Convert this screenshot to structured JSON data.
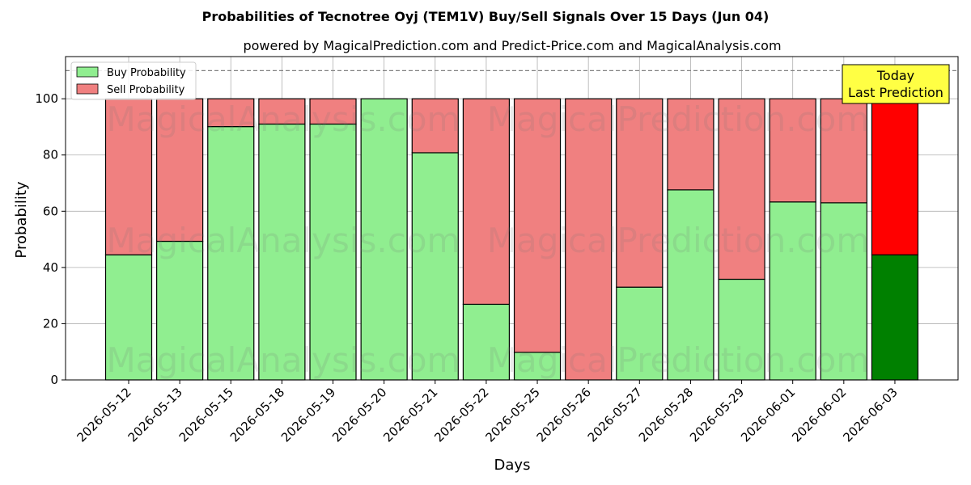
{
  "chart_data": {
    "type": "bar",
    "stacked": true,
    "title": "Probabilities of Tecnotree Oyj (TEM1V) Buy/Sell Signals Over 15 Days (Jun 04)",
    "subtitle": "powered by MagicalPrediction.com and Predict-Price.com and MagicalAnalysis.com",
    "xlabel": "Days",
    "ylabel": "Probability",
    "ylim": [
      0,
      115
    ],
    "yticks": [
      0,
      20,
      40,
      60,
      80,
      100
    ],
    "grid": true,
    "legend_position": "top-left",
    "reference_line": 110,
    "categories": [
      "2026-05-12",
      "2026-05-13",
      "2026-05-15",
      "2026-05-18",
      "2026-05-19",
      "2026-05-20",
      "2026-05-21",
      "2026-05-22",
      "2026-05-25",
      "2026-05-26",
      "2026-05-27",
      "2026-05-28",
      "2026-05-29",
      "2026-06-01",
      "2026-06-02",
      "2026-06-03"
    ],
    "series": [
      {
        "name": "Buy Probability",
        "color": "#90ee90",
        "highlight_color": "#008000",
        "values": [
          44.5,
          49.3,
          90.1,
          91.0,
          91.0,
          100.0,
          80.8,
          26.9,
          9.8,
          0.0,
          33.0,
          67.6,
          35.8,
          63.3,
          63.0,
          44.5
        ]
      },
      {
        "name": "Sell Probability",
        "color": "#f08080",
        "highlight_color": "#ff0000",
        "values": [
          55.5,
          50.7,
          9.9,
          9.0,
          9.0,
          0.0,
          19.2,
          73.1,
          90.2,
          100.0,
          67.0,
          32.4,
          64.2,
          36.7,
          37.0,
          55.5
        ]
      }
    ],
    "annotation": {
      "text_line1": "Today",
      "text_line2": "Last Prediction",
      "color": "#ffff44"
    },
    "watermarks": [
      "MagicalAnalysis.com",
      "MagicalPrediction.com"
    ]
  }
}
